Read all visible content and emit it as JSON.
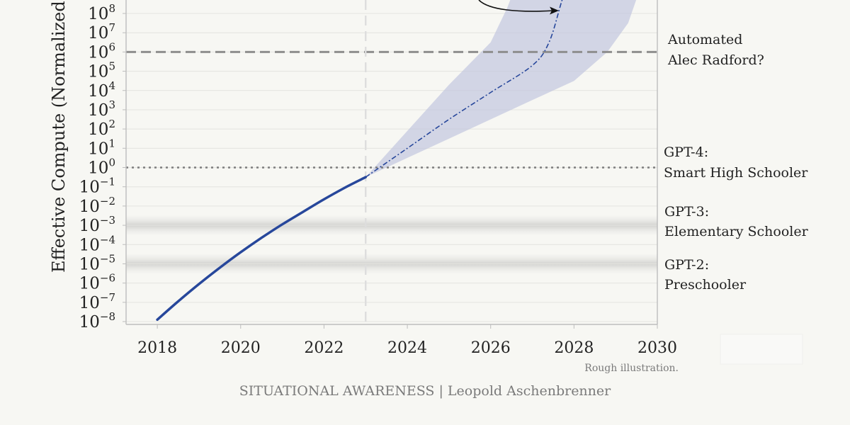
{
  "chart_data": {
    "type": "line",
    "title": "",
    "xlabel": "",
    "ylabel": "Effective Compute (Normalized to",
    "y_scale": "log",
    "xlim": [
      2017.25,
      2030
    ],
    "ylim_exponent": [
      -8,
      9.5
    ],
    "x_ticks": [
      "2018",
      "2020",
      "2022",
      "2024",
      "2026",
      "2028",
      "2030"
    ],
    "y_tick_exponents": [
      "-8",
      "-7",
      "-6",
      "-5",
      "-4",
      "-3",
      "-2",
      "-1",
      "0",
      "1",
      "2",
      "3",
      "4",
      "5",
      "6",
      "7",
      "8"
    ],
    "y_tick_base": "10",
    "grid": true,
    "series": [
      {
        "role": "historical",
        "color": "#27479b",
        "style": "solid",
        "points": [
          [
            2018,
            -7.9
          ],
          [
            2018.5,
            -6.95
          ],
          [
            2019,
            -6.05
          ],
          [
            2019.5,
            -5.2
          ],
          [
            2020,
            -4.4
          ],
          [
            2020.5,
            -3.65
          ],
          [
            2021,
            -2.95
          ],
          [
            2021.5,
            -2.3
          ],
          [
            2022,
            -1.65
          ],
          [
            2022.5,
            -1.05
          ],
          [
            2023,
            -0.5
          ]
        ]
      },
      {
        "role": "projection",
        "color": "#27479b",
        "style": "dash-dot",
        "points": [
          [
            2023,
            -0.5
          ],
          [
            2024,
            1.0
          ],
          [
            2025,
            2.5
          ],
          [
            2026,
            3.9
          ],
          [
            2027,
            5.3
          ],
          [
            2027.4,
            6.5
          ],
          [
            2027.7,
            8.6
          ],
          [
            2027.9,
            10
          ]
        ]
      }
    ],
    "band": {
      "color": "#bfc3dd",
      "upper": [
        [
          2023,
          -0.5
        ],
        [
          2024,
          1.9
        ],
        [
          2025,
          4.3
        ],
        [
          2026,
          6.5
        ],
        [
          2026.4,
          8.3
        ],
        [
          2026.7,
          10
        ]
      ],
      "lower": [
        [
          2029.7,
          10
        ],
        [
          2029.3,
          7.5
        ],
        [
          2028.8,
          6.0
        ],
        [
          2028,
          4.5
        ],
        [
          2027,
          3.5
        ],
        [
          2026,
          2.5
        ],
        [
          2025,
          1.5
        ],
        [
          2024,
          0.5
        ],
        [
          2023,
          -0.5
        ]
      ]
    },
    "reference_lines": [
      {
        "type": "horizontal",
        "exponent": 6,
        "style": "dashed",
        "color": "#8e8e8e"
      },
      {
        "type": "horizontal",
        "exponent": 0,
        "style": "dotted",
        "color": "#7d7d7d"
      },
      {
        "type": "vertical",
        "x": 2023,
        "style": "dashed",
        "color": "#dddddd"
      }
    ],
    "shaded_levels": [
      {
        "exponent": -3,
        "half_width": 0.5
      },
      {
        "exponent": -5,
        "half_width": 0.5
      }
    ],
    "annotations": [
      {
        "lines": [
          "Automated",
          "Alec Radford?"
        ],
        "exponent": 6
      },
      {
        "lines": [
          "GPT-4:",
          "Smart High Schooler"
        ],
        "exponent": 0
      },
      {
        "lines": [
          "GPT-3:",
          "Elementary Schooler"
        ],
        "exponent": -3
      },
      {
        "lines": [
          "GPT-2:",
          "Preschooler"
        ],
        "exponent": -5
      }
    ],
    "note": "Rough illustration.",
    "footer": "SITUATIONAL AWARENESS | Leopold Aschenbrenner"
  }
}
